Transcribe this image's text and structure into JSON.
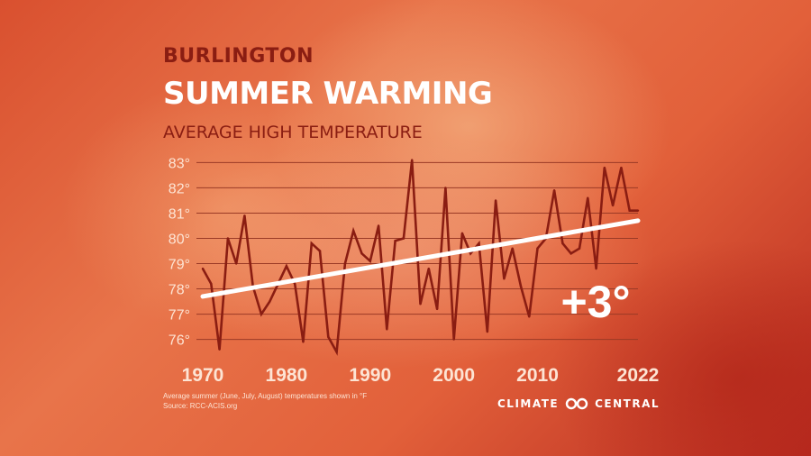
{
  "header": {
    "city": "BURLINGTON",
    "title": "SUMMER WARMING",
    "subtitle": "AVERAGE HIGH TEMPERATURE"
  },
  "footnote": {
    "line1": "Average summer (June, July, August) temperatures shown in °F",
    "line2": "Source: RCC-ACIS.org"
  },
  "logo": {
    "left_word": "CLIMATE",
    "right_word": "CENTRAL",
    "icon": "infinity-link-icon"
  },
  "colors": {
    "data_line": "#8a1d12",
    "trend_line": "#ffffff",
    "grid": "#9a3a26",
    "tick_labels": "#fde4d4",
    "annotation": "#ffffff"
  },
  "chart_data": {
    "type": "line",
    "x_start": 1970,
    "x_end": 2022,
    "x_ticks": [
      1970,
      1980,
      1990,
      2000,
      2010,
      2022
    ],
    "y_ticks": [
      76,
      77,
      78,
      79,
      80,
      81,
      82,
      83
    ],
    "y_tick_suffix": "°",
    "ylim": [
      75.7,
      83.3
    ],
    "grid": true,
    "series": [
      {
        "x": [
          1970,
          1971,
          1972,
          1973,
          1974,
          1975,
          1976,
          1977,
          1978,
          1979,
          1980,
          1981,
          1982,
          1983,
          1984,
          1985,
          1986,
          1987,
          1988,
          1989,
          1990,
          1991,
          1992,
          1993,
          1994,
          1995,
          1996,
          1997,
          1998,
          1999,
          2000,
          2001,
          2002,
          2003,
          2004,
          2005,
          2006,
          2007,
          2008,
          2009,
          2010,
          2011,
          2012,
          2013,
          2014,
          2015,
          2016,
          2017,
          2018,
          2019,
          2020,
          2021,
          2022
        ],
        "values": [
          78.8,
          78.2,
          75.6,
          80.0,
          79.0,
          80.9,
          78.1,
          77.0,
          77.5,
          78.2,
          78.9,
          78.2,
          75.9,
          79.8,
          79.5,
          76.1,
          75.5,
          79.0,
          80.3,
          79.4,
          79.1,
          80.5,
          76.4,
          79.9,
          80.0,
          83.1,
          77.4,
          78.8,
          77.2,
          82.0,
          76.0,
          80.2,
          79.4,
          79.8,
          76.3,
          81.5,
          78.4,
          79.6,
          78.1,
          76.9,
          79.6,
          80.0,
          81.9,
          79.8,
          79.4,
          79.6,
          81.6,
          78.8,
          82.8,
          81.3,
          82.8,
          81.1,
          81.1
        ]
      }
    ],
    "trend": {
      "x": [
        1970,
        2022
      ],
      "values": [
        77.7,
        80.7
      ]
    },
    "annotation": "+3°"
  }
}
